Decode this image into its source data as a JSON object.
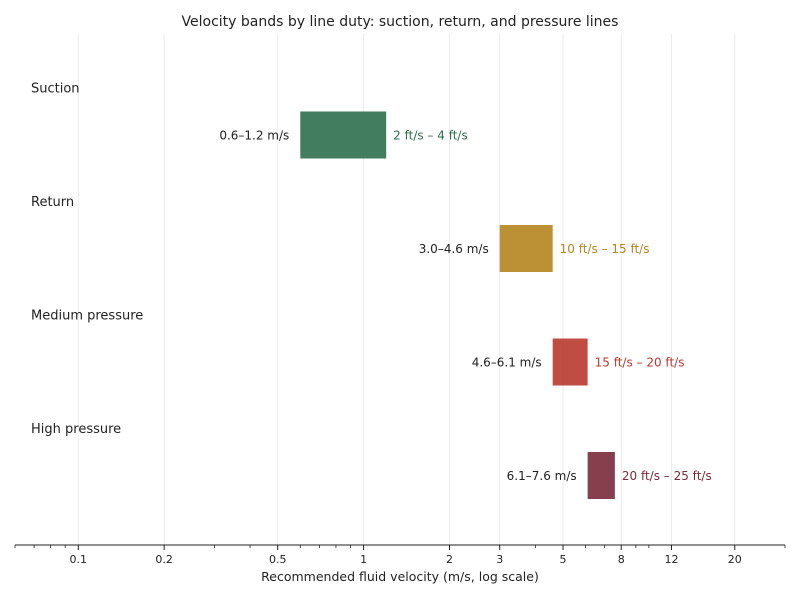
{
  "chart_data": {
    "type": "bar",
    "subtype": "floating-range-bar",
    "title": "Velocity bands by line duty: suction, return, and pressure lines",
    "xlabel": "Recommended fluid velocity (m/s, log scale)",
    "ylabel": "",
    "x_scale": "log",
    "xlim": [
      0.06,
      30
    ],
    "x_ticks": [
      {
        "value": 0.1,
        "label": "0.1"
      },
      {
        "value": 0.2,
        "label": "0.2"
      },
      {
        "value": 0.5,
        "label": "0.5"
      },
      {
        "value": 1,
        "label": "1"
      },
      {
        "value": 2,
        "label": "2"
      },
      {
        "value": 3,
        "label": "3"
      },
      {
        "value": 5,
        "label": "5"
      },
      {
        "value": 8,
        "label": "8"
      },
      {
        "value": 12,
        "label": "12"
      },
      {
        "value": 20,
        "label": "20"
      }
    ],
    "grid": "vertical",
    "legend": "none",
    "categories": [
      "Suction",
      "Return",
      "Medium pressure",
      "High pressure"
    ],
    "bars": [
      {
        "category": "Suction",
        "low": 0.6,
        "high": 1.2,
        "left_label": "0.6–1.2 m/s",
        "right_label": "2 ft/s – 4 ft/s",
        "color": "#2e6f4e",
        "label_color": "#2e6f4e"
      },
      {
        "category": "Return",
        "low": 3.0,
        "high": 4.6,
        "left_label": "3.0–4.6 m/s",
        "right_label": "10 ft/s – 15 ft/s",
        "color": "#b5841f",
        "label_color": "#b5841f"
      },
      {
        "category": "Medium pressure",
        "low": 4.6,
        "high": 6.1,
        "left_label": "4.6–6.1 m/s",
        "right_label": "15 ft/s – 20 ft/s",
        "color": "#b83a2e",
        "label_color": "#b83a2e"
      },
      {
        "category": "High pressure",
        "low": 6.1,
        "high": 7.6,
        "left_label": "6.1–7.6 m/s",
        "right_label": "20 ft/s – 25 ft/s",
        "color": "#7a2a3a",
        "label_color": "#7a2a3a"
      }
    ]
  }
}
